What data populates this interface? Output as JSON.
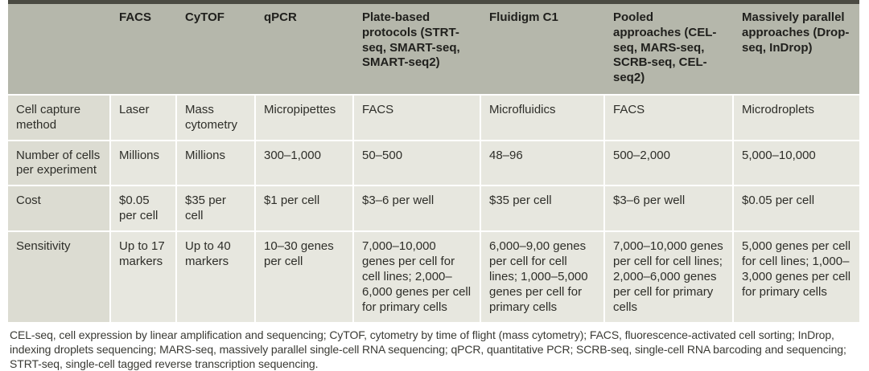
{
  "table": {
    "columns": [
      "",
      "FACS",
      "CyTOF",
      "qPCR",
      "Plate-based protocols (STRT-seq, SMART-seq, SMART-seq2)",
      "Fluidigm C1",
      "Pooled approaches (CEL-seq, MARS-seq, SCRB-seq, CEL-seq2)",
      "Massively parallel approaches (Drop-seq, InDrop)"
    ],
    "rows": [
      {
        "label": "Cell capture method",
        "values": [
          "Laser",
          "Mass cytometry",
          "Micropipettes",
          "FACS",
          "Microfluidics",
          "FACS",
          "Microdroplets"
        ]
      },
      {
        "label": "Number of cells per experiment",
        "values": [
          "Millions",
          "Millions",
          "300–1,000",
          "50–500",
          "48–96",
          "500–2,000",
          "5,000–10,000"
        ]
      },
      {
        "label": "Cost",
        "values": [
          "$0.05 per cell",
          "$35 per cell",
          "$1 per cell",
          "$3–6 per well",
          "$35 per cell",
          "$3–6 per well",
          "$0.05 per cell"
        ]
      },
      {
        "label": "Sensitivity",
        "values": [
          "Up to 17 markers",
          "Up to 40 markers",
          "10–30 genes per cell",
          "7,000–10,000 genes per cell for cell lines; 2,000–6,000 genes per cell for primary cells",
          "6,000–9,00 genes per cell for cell lines; 1,000–5,000 genes per cell for primary cells",
          "7,000–10,000 genes per cell for cell lines; 2,000–6,000 genes per cell for primary cells",
          "5,000 genes per cell for cell lines; 1,000–3,000 genes per cell for primary cells"
        ]
      }
    ]
  },
  "footnote": "CEL-seq, cell expression by linear amplification and sequencing; CyTOF, cytometry by time of flight (mass cytometry); FACS, fluorescence-activated cell sorting; InDrop, indexing droplets sequencing; MARS-seq, massively parallel single-cell RNA sequencing; qPCR, quantitative PCR; SCRB-seq, single-cell RNA barcoding and sequencing; STRT-seq, single-cell tagged reverse transcription sequencing.",
  "colors": {
    "header_bg": "#b5b7ab",
    "row_label_bg": "#dcdcd2",
    "cell_bg": "#e7e7df",
    "top_bar": "#4a4a42",
    "text": "#2e2e29"
  }
}
